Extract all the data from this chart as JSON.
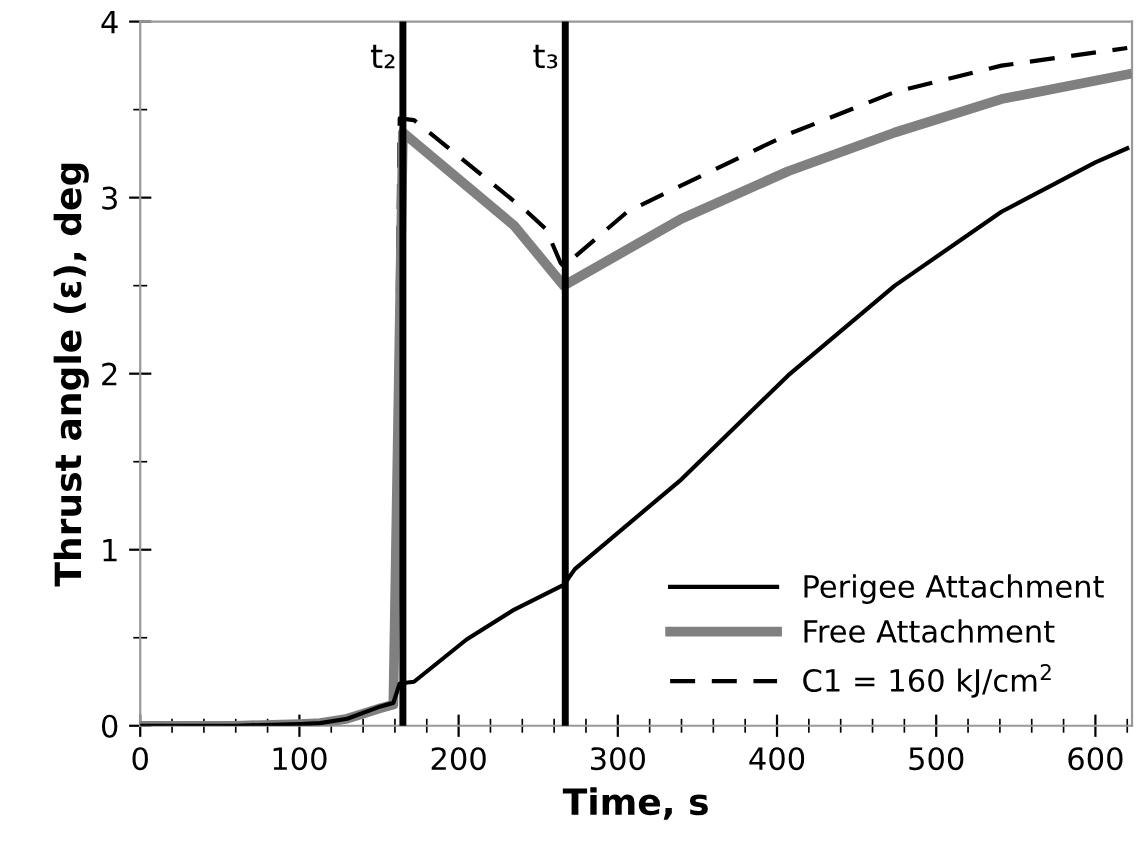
{
  "chart_data": {
    "type": "line",
    "xlabel": "Time, s",
    "ylabel": "Thrust angle (ε), deg",
    "xlim": [
      0,
      623
    ],
    "ylim": [
      0,
      4
    ],
    "xticks": [
      0,
      100,
      200,
      300,
      400,
      500,
      600
    ],
    "yticks": [
      0,
      1,
      2,
      3,
      4
    ],
    "grid": false,
    "legend": "bottom right",
    "marker": "none",
    "series": [
      {
        "name": "Perigee Attachment",
        "color": "#000000",
        "line_style": "solid",
        "x": [
          0,
          60,
          100,
          113,
          130,
          151,
          159,
          163,
          172,
          205,
          235,
          266,
          273,
          340,
          407,
          474,
          541,
          600,
          620
        ],
        "values": [
          0,
          0,
          0.01,
          0.015,
          0.04,
          0.11,
          0.13,
          0.24,
          0.25,
          0.49,
          0.66,
          0.8,
          0.89,
          1.4,
          1.99,
          2.5,
          2.92,
          3.2,
          3.28
        ]
      },
      {
        "name": "Free Attachment",
        "color": "#808080",
        "line_style": "solid",
        "x": [
          0,
          60,
          100,
          113,
          130,
          151,
          159,
          165,
          235,
          266,
          340,
          407,
          474,
          541,
          620
        ],
        "values": [
          0,
          0,
          0.01,
          0.015,
          0.04,
          0.1,
          0.12,
          3.37,
          2.84,
          2.5,
          2.88,
          3.15,
          3.37,
          3.56,
          3.7
        ]
      },
      {
        "name": "C1 = 160 kJ/cm$^{2}$",
        "color": "#000000",
        "line_style": "dashed",
        "x": [
          0,
          60,
          100,
          113,
          130,
          151,
          159,
          163,
          172,
          243,
          255,
          264,
          266,
          306,
          340,
          407,
          474,
          541,
          620
        ],
        "values": [
          0,
          0,
          0.01,
          0.015,
          0.04,
          0.11,
          0.13,
          3.45,
          3.44,
          2.92,
          2.82,
          2.63,
          2.61,
          2.92,
          3.07,
          3.36,
          3.6,
          3.75,
          3.85
        ]
      }
    ],
    "ref_lines": [
      {
        "axis": "x",
        "value": 165,
        "label": "t₂",
        "color": "#000000"
      },
      {
        "axis": "x",
        "value": 267,
        "label": "t₃",
        "color": "#000000"
      }
    ]
  }
}
